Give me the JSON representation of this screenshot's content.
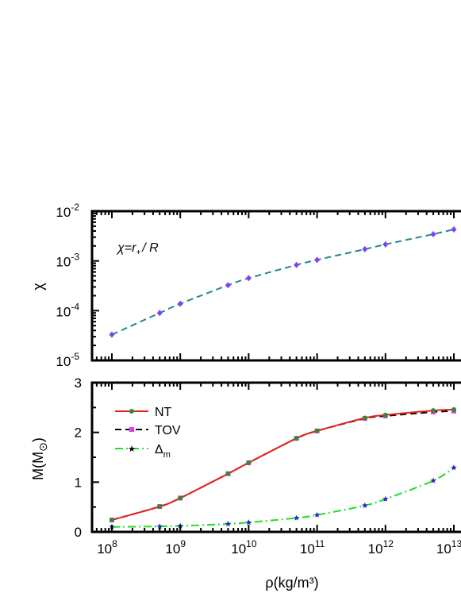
{
  "chart_data": [
    {
      "type": "line",
      "scale": "log-log",
      "title": "",
      "xlabel": "",
      "ylabel": "χ",
      "xlim": [
        10000000.0,
        20000000000000.0
      ],
      "ylim": [
        1e-05,
        0.01
      ],
      "ytick_labels": [
        {
          "base": "10",
          "exp": "-5"
        },
        {
          "base": "10",
          "exp": "-4"
        },
        {
          "base": "10",
          "exp": "-3"
        },
        {
          "base": "10",
          "exp": "-2"
        }
      ],
      "annotation": {
        "lhs": "χ=",
        "var": "r",
        "sub": "+",
        "rhs": "/ R"
      },
      "series": [
        {
          "color": "#1f8a8a",
          "marker_color": "#7f3fff",
          "dash": "dashed",
          "x": [
            100000000.0,
            500000000.0,
            1000000000.0,
            5000000000.0,
            10000000000.0,
            50000000000.0,
            100000000000.0,
            500000000000.0,
            1000000000000.0,
            5000000000000.0,
            10000000000000.0
          ],
          "y": [
            3.3e-05,
            9e-05,
            0.000138,
            0.000325,
            0.00045,
            0.00083,
            0.00105,
            0.00172,
            0.00215,
            0.00345,
            0.0043
          ]
        }
      ]
    },
    {
      "type": "line",
      "scale": "semilog-x",
      "title": "",
      "xlabel": "ρ(kg/m³)",
      "ylabel": "M(M",
      "ylabel_symbol": "⊙",
      "ylabel_close": ")",
      "xlim": [
        10000000.0,
        20000000000000.0
      ],
      "ylim": [
        0,
        3
      ],
      "yticks": [
        0,
        1,
        2,
        3
      ],
      "xtick_labels": [
        {
          "base": "10",
          "exp": "8"
        },
        {
          "base": "10",
          "exp": "9"
        },
        {
          "base": "10",
          "exp": "10"
        },
        {
          "base": "10",
          "exp": "11"
        },
        {
          "base": "10",
          "exp": "12"
        },
        {
          "base": "10",
          "exp": "13"
        }
      ],
      "legend": {
        "position": "top-left",
        "entries": [
          {
            "label": "NT"
          },
          {
            "label": "TOV"
          },
          {
            "label": "Δ",
            "sub": "m"
          }
        ]
      },
      "series": [
        {
          "name": "NT",
          "color": "#e8211f",
          "marker_color": "#2e8b3a",
          "marker": "circle",
          "dash": "solid",
          "x": [
            100000000.0,
            500000000.0,
            1000000000.0,
            5000000000.0,
            10000000000.0,
            50000000000.0,
            100000000000.0,
            500000000000.0,
            1000000000000.0,
            5000000000000.0,
            10000000000000.0
          ],
          "y": [
            0.24,
            0.51,
            0.68,
            1.17,
            1.39,
            1.88,
            2.03,
            2.29,
            2.35,
            2.44,
            2.46
          ]
        },
        {
          "name": "TOV",
          "color": "#000000",
          "marker_color": "#e03fe0",
          "marker": "square",
          "dash": "dashed",
          "x": [
            100000000.0,
            500000000.0,
            1000000000.0,
            5000000000.0,
            10000000000.0,
            50000000000.0,
            100000000000.0,
            500000000000.0,
            1000000000000.0,
            5000000000000.0,
            10000000000000.0
          ],
          "y": [
            0.24,
            0.51,
            0.68,
            1.17,
            1.39,
            1.88,
            2.03,
            2.28,
            2.33,
            2.41,
            2.43
          ]
        },
        {
          "name": "Δm",
          "color": "#22dd22",
          "marker_color": "#2222cc",
          "marker": "star",
          "dash": "dashdot",
          "x": [
            100000000.0,
            500000000.0,
            1000000000.0,
            5000000000.0,
            10000000000.0,
            50000000000.0,
            100000000000.0,
            500000000000.0,
            1000000000000.0,
            5000000000000.0,
            10000000000000.0
          ],
          "y": [
            0.1,
            0.11,
            0.12,
            0.16,
            0.19,
            0.28,
            0.34,
            0.53,
            0.66,
            1.03,
            1.29
          ]
        }
      ]
    }
  ]
}
